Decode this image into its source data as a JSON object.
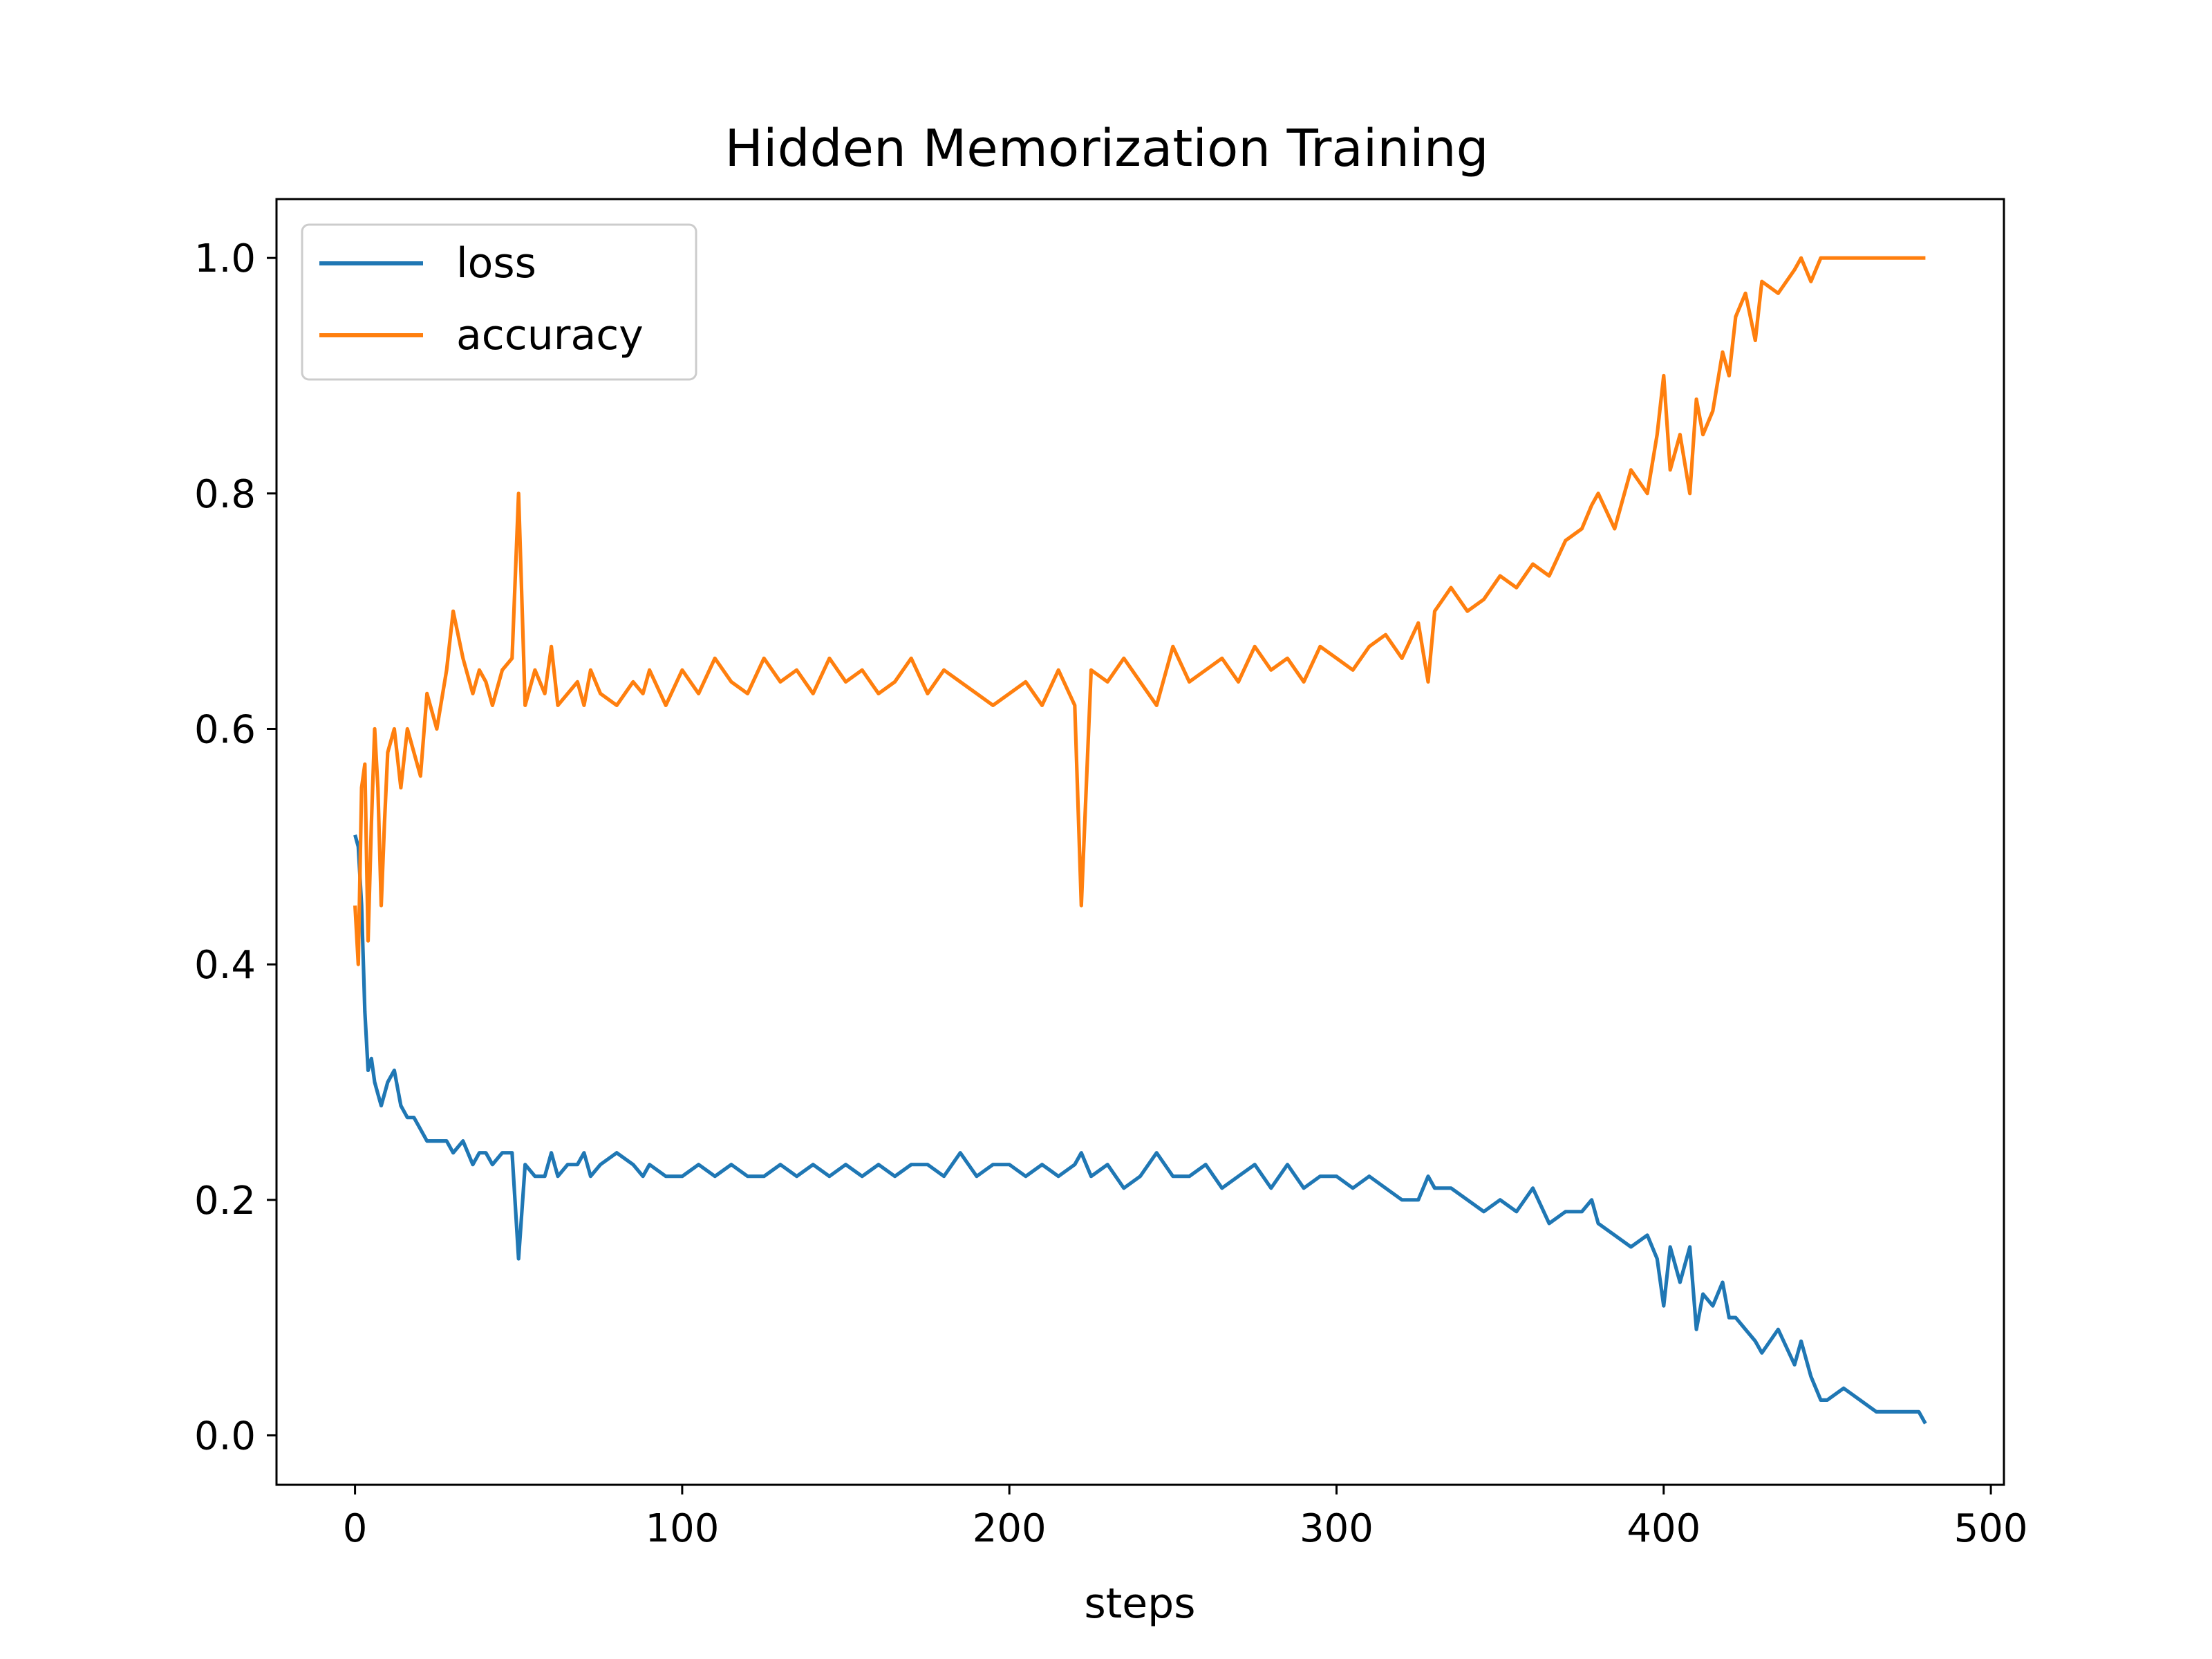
{
  "chart_data": {
    "type": "line",
    "title": "Hidden Memorization Training",
    "xlabel": "steps",
    "ylabel": "",
    "xlim": [
      -24,
      504
    ],
    "ylim": [
      -0.042,
      1.05
    ],
    "xticks": [
      0,
      100,
      200,
      300,
      400,
      500
    ],
    "xtick_labels": [
      "0",
      "100",
      "200",
      "300",
      "400",
      "500"
    ],
    "yticks": [
      0.0,
      0.2,
      0.4,
      0.6,
      0.8,
      1.0
    ],
    "ytick_labels": [
      "0.0",
      "0.2",
      "0.4",
      "0.6",
      "0.8",
      "1.0"
    ],
    "grid": false,
    "legend_position": "top-left",
    "series": [
      {
        "name": "loss",
        "color": "#1f77b4",
        "x": [
          0,
          1,
          2,
          3,
          4,
          5,
          6,
          7,
          8,
          9,
          10,
          12,
          14,
          16,
          18,
          20,
          22,
          25,
          28,
          30,
          33,
          36,
          38,
          40,
          42,
          45,
          48,
          50,
          52,
          55,
          58,
          60,
          62,
          65,
          68,
          70,
          72,
          75,
          80,
          85,
          88,
          90,
          95,
          100,
          105,
          110,
          115,
          120,
          125,
          130,
          135,
          140,
          145,
          150,
          155,
          160,
          165,
          170,
          175,
          180,
          185,
          190,
          195,
          200,
          205,
          210,
          215,
          220,
          222,
          225,
          230,
          235,
          240,
          245,
          250,
          255,
          260,
          265,
          270,
          275,
          280,
          285,
          290,
          295,
          300,
          305,
          310,
          315,
          320,
          325,
          328,
          330,
          335,
          340,
          345,
          350,
          355,
          360,
          365,
          370,
          375,
          378,
          380,
          385,
          390,
          395,
          398,
          400,
          402,
          405,
          408,
          410,
          412,
          415,
          418,
          420,
          422,
          425,
          428,
          430,
          435,
          440,
          442,
          445,
          448,
          450,
          455,
          460,
          465,
          470,
          475,
          478,
          480
        ],
        "y": [
          0.51,
          0.5,
          0.45,
          0.36,
          0.31,
          0.32,
          0.3,
          0.29,
          0.28,
          0.29,
          0.3,
          0.31,
          0.28,
          0.27,
          0.27,
          0.26,
          0.25,
          0.25,
          0.25,
          0.24,
          0.25,
          0.23,
          0.24,
          0.24,
          0.23,
          0.24,
          0.24,
          0.15,
          0.23,
          0.22,
          0.22,
          0.24,
          0.22,
          0.23,
          0.23,
          0.24,
          0.22,
          0.23,
          0.24,
          0.23,
          0.22,
          0.23,
          0.22,
          0.22,
          0.23,
          0.22,
          0.23,
          0.22,
          0.22,
          0.23,
          0.22,
          0.23,
          0.22,
          0.23,
          0.22,
          0.23,
          0.22,
          0.23,
          0.23,
          0.22,
          0.24,
          0.22,
          0.23,
          0.23,
          0.22,
          0.23,
          0.22,
          0.23,
          0.24,
          0.22,
          0.23,
          0.21,
          0.22,
          0.24,
          0.22,
          0.22,
          0.23,
          0.21,
          0.22,
          0.23,
          0.21,
          0.23,
          0.21,
          0.22,
          0.22,
          0.21,
          0.22,
          0.21,
          0.2,
          0.2,
          0.22,
          0.21,
          0.21,
          0.2,
          0.19,
          0.2,
          0.19,
          0.21,
          0.18,
          0.19,
          0.19,
          0.2,
          0.18,
          0.17,
          0.16,
          0.17,
          0.15,
          0.11,
          0.16,
          0.13,
          0.16,
          0.09,
          0.12,
          0.11,
          0.13,
          0.1,
          0.1,
          0.09,
          0.08,
          0.07,
          0.09,
          0.06,
          0.08,
          0.05,
          0.03,
          0.03,
          0.04,
          0.03,
          0.02,
          0.02,
          0.02,
          0.02,
          0.01
        ],
        "linewidth": 5.2
      },
      {
        "name": "accuracy",
        "color": "#ff7f0e",
        "x": [
          0,
          1,
          2,
          3,
          4,
          5,
          6,
          7,
          8,
          9,
          10,
          12,
          14,
          16,
          18,
          20,
          22,
          25,
          28,
          30,
          33,
          36,
          38,
          40,
          42,
          45,
          48,
          50,
          52,
          55,
          58,
          60,
          62,
          65,
          68,
          70,
          72,
          75,
          80,
          85,
          88,
          90,
          95,
          100,
          105,
          110,
          115,
          120,
          125,
          130,
          135,
          140,
          145,
          150,
          155,
          160,
          165,
          170,
          175,
          180,
          185,
          190,
          195,
          200,
          205,
          210,
          215,
          220,
          222,
          225,
          230,
          235,
          240,
          245,
          250,
          255,
          260,
          265,
          270,
          275,
          280,
          285,
          290,
          295,
          300,
          305,
          310,
          315,
          320,
          325,
          328,
          330,
          335,
          340,
          345,
          350,
          355,
          360,
          365,
          370,
          375,
          378,
          380,
          385,
          390,
          395,
          398,
          400,
          402,
          405,
          408,
          410,
          412,
          415,
          418,
          420,
          422,
          425,
          428,
          430,
          435,
          440,
          442,
          445,
          448,
          450,
          455,
          460,
          465,
          470,
          475,
          478,
          480
        ],
        "y": [
          0.45,
          0.4,
          0.55,
          0.57,
          0.42,
          0.52,
          0.6,
          0.55,
          0.45,
          0.52,
          0.58,
          0.6,
          0.55,
          0.6,
          0.58,
          0.56,
          0.63,
          0.6,
          0.65,
          0.7,
          0.66,
          0.63,
          0.65,
          0.64,
          0.62,
          0.65,
          0.66,
          0.8,
          0.62,
          0.65,
          0.63,
          0.67,
          0.62,
          0.63,
          0.64,
          0.62,
          0.65,
          0.63,
          0.62,
          0.64,
          0.63,
          0.65,
          0.62,
          0.65,
          0.63,
          0.66,
          0.64,
          0.63,
          0.66,
          0.64,
          0.65,
          0.63,
          0.66,
          0.64,
          0.65,
          0.63,
          0.64,
          0.66,
          0.63,
          0.65,
          0.64,
          0.63,
          0.62,
          0.63,
          0.64,
          0.62,
          0.65,
          0.62,
          0.45,
          0.65,
          0.64,
          0.66,
          0.64,
          0.62,
          0.67,
          0.64,
          0.65,
          0.66,
          0.64,
          0.67,
          0.65,
          0.66,
          0.64,
          0.67,
          0.66,
          0.65,
          0.67,
          0.68,
          0.66,
          0.69,
          0.64,
          0.7,
          0.72,
          0.7,
          0.71,
          0.73,
          0.72,
          0.74,
          0.73,
          0.76,
          0.77,
          0.79,
          0.8,
          0.77,
          0.82,
          0.8,
          0.85,
          0.9,
          0.82,
          0.85,
          0.8,
          0.88,
          0.85,
          0.87,
          0.92,
          0.9,
          0.95,
          0.97,
          0.93,
          0.98,
          0.97,
          0.99,
          1.0,
          0.98,
          1.0,
          1.0,
          1.0,
          1.0,
          1.0,
          1.0,
          1.0,
          1.0,
          1.0
        ],
        "linewidth": 5.2
      }
    ]
  }
}
